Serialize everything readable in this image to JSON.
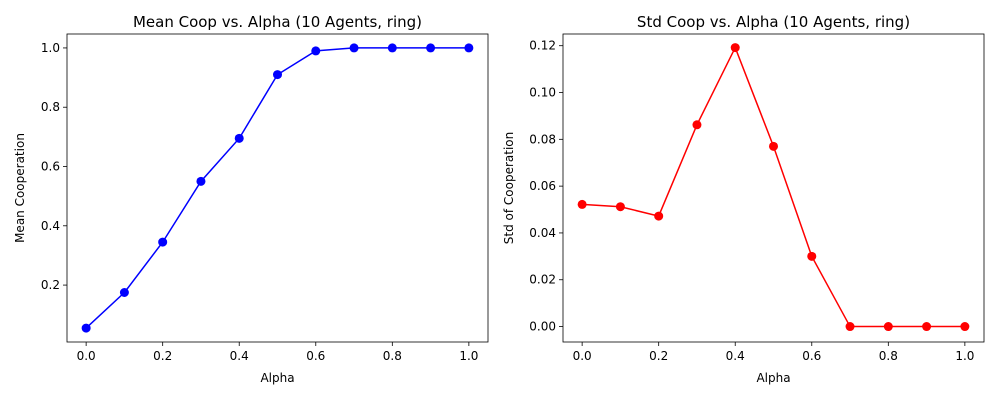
{
  "chart_data": [
    {
      "type": "line",
      "title": "Mean Coop vs. Alpha (10 Agents, ring)",
      "xlabel": "Alpha",
      "ylabel": "Mean Cooperation",
      "x": [
        0.0,
        0.1,
        0.2,
        0.3,
        0.4,
        0.5,
        0.6,
        0.7,
        0.8,
        0.9,
        1.0
      ],
      "series": [
        {
          "values": [
            0.055,
            0.175,
            0.345,
            0.55,
            0.695,
            0.91,
            0.99,
            1.0,
            1.0,
            1.0,
            1.0
          ],
          "color": "#0000ff"
        }
      ],
      "xlim": [
        -0.05,
        1.05
      ],
      "ylim": [
        0.008,
        1.047
      ],
      "xticks": [
        0.0,
        0.2,
        0.4,
        0.6,
        0.8,
        1.0
      ],
      "xtick_labels": [
        "0.0",
        "0.2",
        "0.4",
        "0.6",
        "0.8",
        "1.0"
      ],
      "yticks": [
        0.2,
        0.4,
        0.6,
        0.8,
        1.0
      ],
      "ytick_labels": [
        "0.2",
        "0.4",
        "0.6",
        "0.8",
        "1.0"
      ],
      "grid": false,
      "marker": "circle"
    },
    {
      "type": "line",
      "title": "Std Coop vs. Alpha (10 Agents, ring)",
      "xlabel": "Alpha",
      "ylabel": "Std of Cooperation",
      "x": [
        0.0,
        0.1,
        0.2,
        0.3,
        0.4,
        0.5,
        0.6,
        0.7,
        0.8,
        0.9,
        1.0
      ],
      "series": [
        {
          "values": [
            0.0522,
            0.0512,
            0.0472,
            0.0862,
            0.1192,
            0.077,
            0.03,
            0.0,
            0.0,
            0.0,
            0.0
          ],
          "color": "#ff0000"
        }
      ],
      "xlim": [
        -0.05,
        1.05
      ],
      "ylim": [
        -0.0066,
        0.125
      ],
      "xticks": [
        0.0,
        0.2,
        0.4,
        0.6,
        0.8,
        1.0
      ],
      "xtick_labels": [
        "0.0",
        "0.2",
        "0.4",
        "0.6",
        "0.8",
        "1.0"
      ],
      "yticks": [
        0.0,
        0.02,
        0.04,
        0.06,
        0.08,
        0.1,
        0.12
      ],
      "ytick_labels": [
        "0.00",
        "0.02",
        "0.04",
        "0.06",
        "0.08",
        "0.10",
        "0.12"
      ],
      "grid": false,
      "marker": "circle"
    }
  ]
}
